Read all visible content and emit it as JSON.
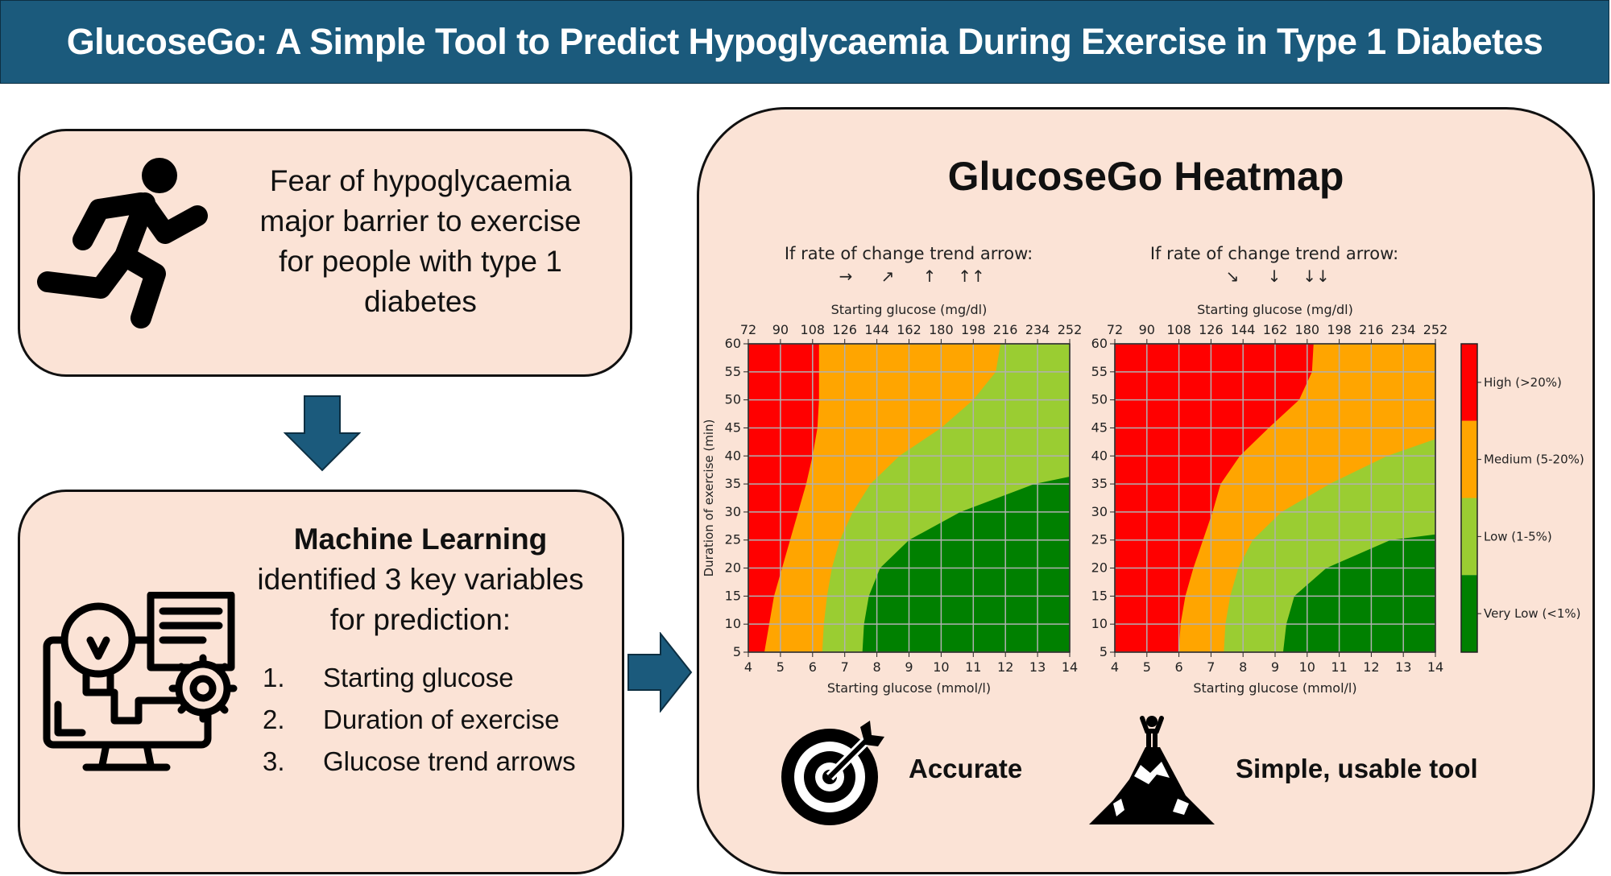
{
  "title": "GlucoseGo: A Simple Tool to Predict Hypoglycaemia During Exercise in Type 1 Diabetes",
  "barrier_box": {
    "icon": "runner-icon",
    "lines": [
      "Fear of hypoglycaemia",
      "major barrier to exercise",
      "for people with type 1",
      "diabetes"
    ]
  },
  "ml_box": {
    "icon": "machine-learning-icon",
    "heading_bold": "Machine  Learning",
    "heading_lines": [
      "identified 3 key variables",
      "for prediction:"
    ],
    "items": [
      {
        "num": "1.",
        "label": "Starting glucose"
      },
      {
        "num": "2.",
        "label": "Duration of exercise"
      },
      {
        "num": "3.",
        "label": "Glucose trend arrows"
      }
    ]
  },
  "heatmap_box": {
    "heading": "GlucoseGo Heatmap",
    "features": [
      {
        "icon": "target-icon",
        "label": "Accurate"
      },
      {
        "icon": "mountain-summit-icon",
        "label": "Simple, usable tool"
      }
    ]
  },
  "chart_data": [
    {
      "type": "heatmap",
      "title": "If rate of change trend arrow:",
      "trend_arrows": [
        "→",
        "↗",
        "↑",
        "↑↑"
      ],
      "xlabel": "Starting glucose (mmol/l)",
      "xlabel_top": "Starting glucose (mg/dl)",
      "ylabel": "Duration of exercise (min)",
      "xlim": [
        4,
        14
      ],
      "ylim": [
        5,
        60
      ],
      "xticks": [
        "4",
        "5",
        "6",
        "7",
        "8",
        "9",
        "10",
        "11",
        "12",
        "13",
        "14"
      ],
      "xticks_top": [
        "72",
        "90",
        "108",
        "126",
        "144",
        "162",
        "180",
        "198",
        "216",
        "234",
        "252"
      ],
      "yticks": [
        "5",
        "10",
        "15",
        "20",
        "25",
        "30",
        "35",
        "40",
        "45",
        "50",
        "55",
        "60"
      ],
      "grid": true,
      "boundaries": {
        "high_medium": [
          [
            4.5,
            5
          ],
          [
            4.65,
            10
          ],
          [
            4.8,
            15
          ],
          [
            5.05,
            20
          ],
          [
            5.3,
            25
          ],
          [
            5.55,
            30
          ],
          [
            5.8,
            35
          ],
          [
            6.0,
            40
          ],
          [
            6.15,
            45
          ],
          [
            6.2,
            50
          ],
          [
            6.2,
            55
          ],
          [
            6.2,
            60
          ]
        ],
        "medium_low": [
          [
            6.3,
            5
          ],
          [
            6.35,
            10
          ],
          [
            6.45,
            15
          ],
          [
            6.6,
            20
          ],
          [
            6.85,
            25
          ],
          [
            7.25,
            30
          ],
          [
            7.8,
            35
          ],
          [
            8.7,
            40
          ],
          [
            10.0,
            45
          ],
          [
            11.0,
            50
          ],
          [
            11.7,
            55
          ],
          [
            11.85,
            60
          ]
        ],
        "low_verylow": [
          [
            7.55,
            5
          ],
          [
            7.6,
            10
          ],
          [
            7.75,
            15
          ],
          [
            8.1,
            20
          ],
          [
            9.0,
            25
          ],
          [
            10.6,
            30
          ],
          [
            12.9,
            35
          ],
          [
            14,
            36.3
          ]
        ]
      }
    },
    {
      "type": "heatmap",
      "title": "If rate of change trend arrow:",
      "trend_arrows": [
        "↘",
        "↓",
        "↓↓"
      ],
      "xlabel": "Starting glucose (mmol/l)",
      "xlabel_top": "Starting glucose (mg/dl)",
      "xlim": [
        4,
        14
      ],
      "ylim": [
        5,
        60
      ],
      "xticks": [
        "4",
        "5",
        "6",
        "7",
        "8",
        "9",
        "10",
        "11",
        "12",
        "13",
        "14"
      ],
      "xticks_top": [
        "72",
        "90",
        "108",
        "126",
        "144",
        "162",
        "180",
        "198",
        "216",
        "234",
        "252"
      ],
      "yticks": [
        "5",
        "10",
        "15",
        "20",
        "25",
        "30",
        "35",
        "40",
        "45",
        "50",
        "55",
        "60"
      ],
      "grid": true,
      "boundaries": {
        "high_medium": [
          [
            6.0,
            5
          ],
          [
            6.05,
            10
          ],
          [
            6.2,
            15
          ],
          [
            6.45,
            20
          ],
          [
            6.75,
            25
          ],
          [
            7.05,
            30
          ],
          [
            7.3,
            35
          ],
          [
            7.9,
            40
          ],
          [
            8.8,
            45
          ],
          [
            9.75,
            50
          ],
          [
            10.15,
            55
          ],
          [
            10.2,
            60
          ]
        ],
        "medium_low": [
          [
            7.4,
            5
          ],
          [
            7.45,
            10
          ],
          [
            7.6,
            15
          ],
          [
            7.85,
            20
          ],
          [
            8.3,
            25
          ],
          [
            9.2,
            30
          ],
          [
            10.7,
            35
          ],
          [
            12.5,
            40
          ],
          [
            14,
            43
          ]
        ],
        "low_verylow": [
          [
            9.25,
            5
          ],
          [
            9.35,
            10
          ],
          [
            9.6,
            15
          ],
          [
            10.6,
            20
          ],
          [
            12.6,
            25
          ],
          [
            14,
            26
          ]
        ]
      }
    }
  ],
  "legend": {
    "categories": [
      {
        "label": "High (>20%)",
        "color": "#ff0000"
      },
      {
        "label": "Medium (5-20%)",
        "color": "#ffa500"
      },
      {
        "label": "Low (1-5%)",
        "color": "#9acd32"
      },
      {
        "label": "Very Low (<1%)",
        "color": "#008000"
      }
    ]
  },
  "colors": {
    "title_bar": "#1b5a7c",
    "box_fill": "#fbe3d6",
    "arrow": "#1b5a7c"
  }
}
